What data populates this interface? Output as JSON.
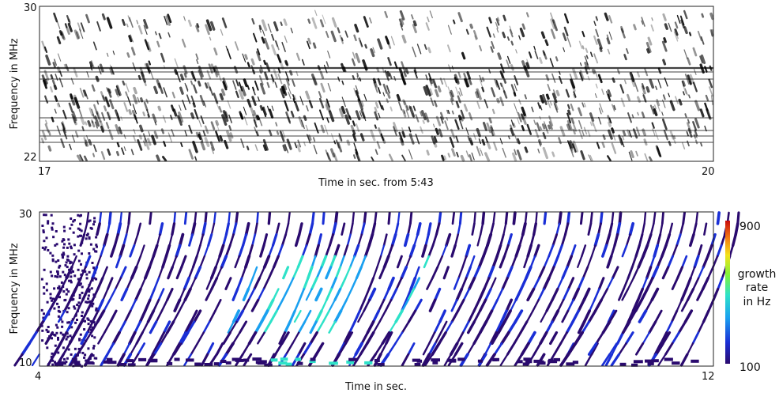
{
  "chart_data": [
    {
      "type": "heatmap",
      "colormap": "grayscale",
      "xlabel": "Time in sec. from 5:43",
      "ylabel": "Frequency in MHz",
      "xlim": [
        17,
        20
      ],
      "ylim": [
        22,
        30
      ],
      "x_ticks": [
        "17",
        "20"
      ],
      "y_ticks": [
        "22",
        "30"
      ],
      "grid": false
    },
    {
      "type": "heatmap",
      "colormap": "jet",
      "xlabel": "Time in sec.",
      "ylabel": "Frequency in MHz",
      "xlim": [
        4,
        12
      ],
      "ylim": [
        10,
        30
      ],
      "x_ticks": [
        "4",
        "12"
      ],
      "y_ticks": [
        "10",
        "30"
      ],
      "grid": false,
      "colorbar": {
        "label_lines": [
          "growth",
          "rate",
          "in  Hz"
        ],
        "min": 100,
        "max": 900,
        "tick_labels": [
          "100",
          "900"
        ]
      }
    }
  ]
}
